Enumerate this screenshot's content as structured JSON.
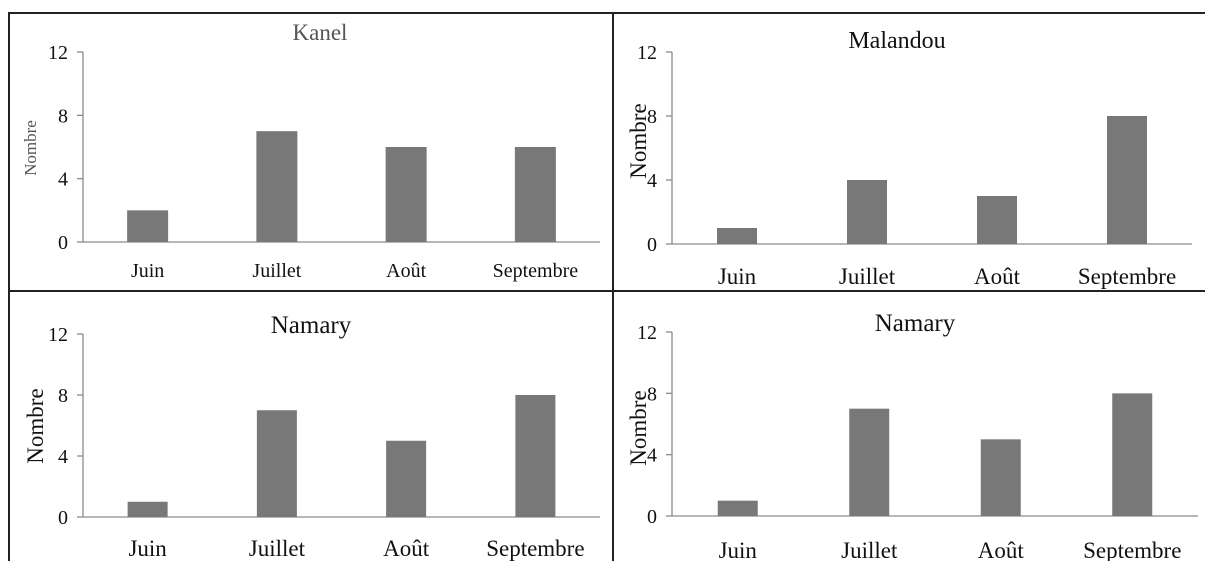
{
  "colors": {
    "bar": "#787878",
    "axis": "#8c8c8c",
    "text": "#111111",
    "frame": "#222222"
  },
  "chart_data": [
    {
      "type": "bar",
      "title": "Kanel",
      "xlabel": "",
      "ylabel": "Nombre",
      "categories": [
        "Juin",
        "Juillet",
        "Août",
        "Septembre"
      ],
      "values": [
        2,
        7,
        6,
        6
      ],
      "ylim": [
        0,
        12
      ],
      "yticks": [
        0,
        4,
        8,
        12
      ],
      "grid": false
    },
    {
      "type": "bar",
      "title": "Malandou",
      "xlabel": "",
      "ylabel": "Nombre",
      "categories": [
        "Juin",
        "Juillet",
        "Août",
        "Septembre"
      ],
      "values": [
        1,
        4,
        3,
        8
      ],
      "ylim": [
        0,
        12
      ],
      "yticks": [
        0,
        4,
        8,
        12
      ],
      "grid": false
    },
    {
      "type": "bar",
      "title": "Namary",
      "xlabel": "",
      "ylabel": "Nombre",
      "categories": [
        "Juin",
        "Juillet",
        "Août",
        "Septembre"
      ],
      "values": [
        1,
        7,
        5,
        8
      ],
      "ylim": [
        0,
        12
      ],
      "yticks": [
        0,
        4,
        8,
        12
      ],
      "grid": false
    },
    {
      "type": "bar",
      "title": "Namary",
      "xlabel": "",
      "ylabel": "Nombre",
      "categories": [
        "Juin",
        "Juillet",
        "Août",
        "Septembre"
      ],
      "values": [
        1,
        7,
        5,
        8
      ],
      "ylim": [
        0,
        12
      ],
      "yticks": [
        0,
        4,
        8,
        12
      ],
      "grid": false
    }
  ]
}
